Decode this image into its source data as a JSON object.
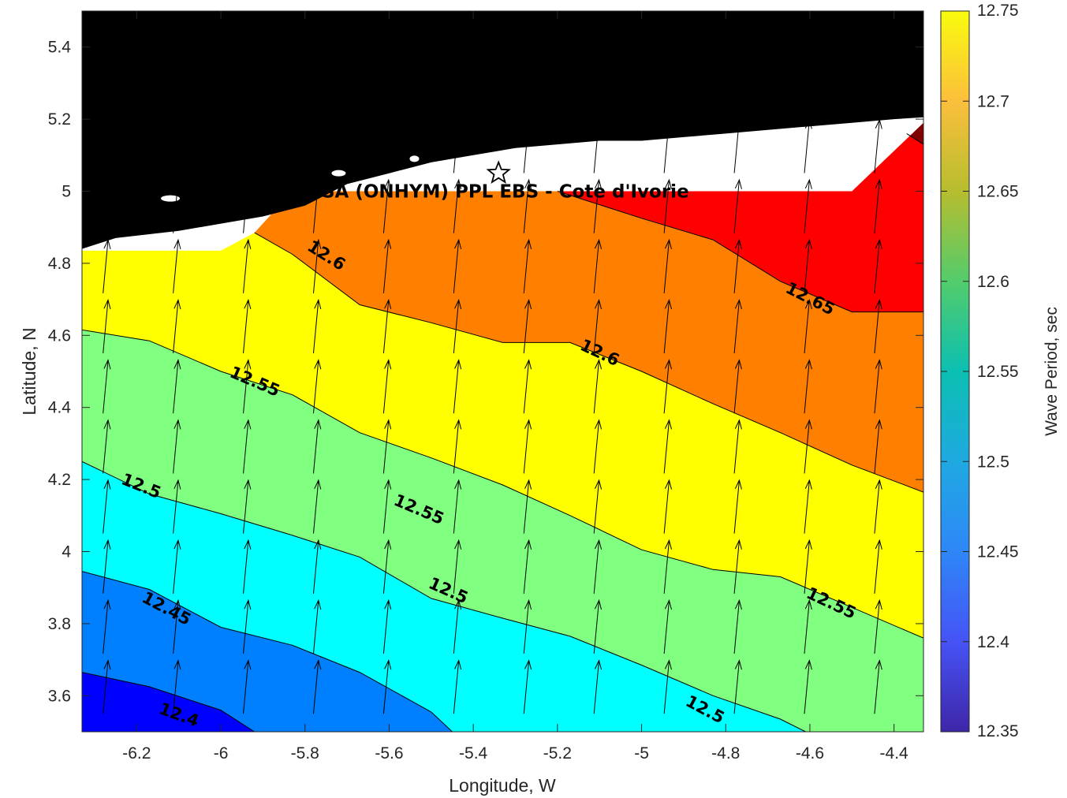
{
  "chart_data": {
    "type": "contour",
    "title": "",
    "xlabel": "Longitude, W",
    "ylabel": "Latitude, N",
    "colorbar_label": "Wave Period, sec",
    "xlim": [
      -6.33,
      -4.33
    ],
    "ylim": [
      3.5,
      5.5
    ],
    "clim": [
      12.35,
      12.75
    ],
    "x_ticks": [
      -6.2,
      -6,
      -5.8,
      -5.6,
      -5.4,
      -5.2,
      -5,
      -4.8,
      -4.6,
      -4.4
    ],
    "x_tick_labels": [
      "-6.2",
      "-6",
      "-5.8",
      "-5.6",
      "-5.4",
      "-5.2",
      "-5",
      "-4.8",
      "-4.6",
      "-4.4"
    ],
    "y_ticks": [
      3.6,
      3.8,
      4,
      4.2,
      4.4,
      4.6,
      4.8,
      5,
      5.2,
      5.4
    ],
    "y_tick_labels": [
      "3.6",
      "3.8",
      "4",
      "4.2",
      "4.4",
      "4.6",
      "4.8",
      "5",
      "5.2",
      "5.4"
    ],
    "colorbar_ticks": [
      12.35,
      12.4,
      12.45,
      12.5,
      12.55,
      12.6,
      12.65,
      12.7,
      12.75
    ],
    "colorbar_tick_labels": [
      "12.35",
      "12.4",
      "12.45",
      "12.5",
      "12.55",
      "12.6",
      "12.65",
      "12.7",
      "12.75"
    ],
    "contour_levels": [
      12.4,
      12.45,
      12.5,
      12.55,
      12.6,
      12.65,
      12.7
    ],
    "band_colors": [
      "#0000ff",
      "#0080ff",
      "#00ffff",
      "#80ff80",
      "#ffff00",
      "#ff8000",
      "#ff0000",
      "#800000"
    ],
    "contour_lines": [
      {
        "level": 12.4,
        "points": [
          [
            -6.33,
            3.665
          ],
          [
            -6.17,
            3.625
          ],
          [
            -6.0,
            3.56
          ],
          [
            -5.92,
            3.5
          ]
        ]
      },
      {
        "level": 12.45,
        "points": [
          [
            -6.33,
            3.945
          ],
          [
            -6.17,
            3.895
          ],
          [
            -6.0,
            3.79
          ],
          [
            -5.83,
            3.74
          ],
          [
            -5.67,
            3.665
          ],
          [
            -5.5,
            3.555
          ],
          [
            -5.45,
            3.5
          ]
        ]
      },
      {
        "level": 12.5,
        "points": [
          [
            -6.33,
            4.25
          ],
          [
            -6.17,
            4.16
          ],
          [
            -6.0,
            4.105
          ],
          [
            -5.83,
            4.045
          ],
          [
            -5.67,
            3.985
          ],
          [
            -5.5,
            3.87
          ],
          [
            -5.33,
            3.815
          ],
          [
            -5.17,
            3.765
          ],
          [
            -5.0,
            3.685
          ],
          [
            -4.83,
            3.6
          ],
          [
            -4.67,
            3.535
          ],
          [
            -4.61,
            3.5
          ]
        ]
      },
      {
        "level": 12.55,
        "points": [
          [
            -6.33,
            4.615
          ],
          [
            -6.17,
            4.585
          ],
          [
            -6.0,
            4.5
          ],
          [
            -5.83,
            4.435
          ],
          [
            -5.67,
            4.33
          ],
          [
            -5.5,
            4.26
          ],
          [
            -5.33,
            4.185
          ],
          [
            -5.17,
            4.1
          ],
          [
            -5.0,
            4.005
          ],
          [
            -4.83,
            3.95
          ],
          [
            -4.67,
            3.93
          ],
          [
            -4.5,
            3.845
          ],
          [
            -4.33,
            3.76
          ]
        ]
      },
      {
        "level": 12.6,
        "points": [
          [
            -5.92,
            4.885
          ],
          [
            -5.83,
            4.825
          ],
          [
            -5.67,
            4.685
          ],
          [
            -5.5,
            4.635
          ],
          [
            -5.33,
            4.58
          ],
          [
            -5.17,
            4.58
          ],
          [
            -5.0,
            4.5
          ],
          [
            -4.83,
            4.41
          ],
          [
            -4.67,
            4.33
          ],
          [
            -4.5,
            4.24
          ],
          [
            -4.33,
            4.165
          ]
        ]
      },
      {
        "level": 12.65,
        "points": [
          [
            -5.2,
            5.0
          ],
          [
            -5.0,
            4.925
          ],
          [
            -4.83,
            4.865
          ],
          [
            -4.67,
            4.75
          ],
          [
            -4.5,
            4.665
          ],
          [
            -4.33,
            4.665
          ]
        ]
      },
      {
        "level": 12.7,
        "points": [
          [
            -4.37,
            5.16
          ],
          [
            -4.33,
            5.13
          ]
        ]
      }
    ],
    "contour_labels": [
      {
        "text": "12.4",
        "x": -6.1,
        "y": 3.545,
        "angle": 20
      },
      {
        "text": "12.45",
        "x": -6.13,
        "y": 3.84,
        "angle": 28
      },
      {
        "text": "12.5",
        "x": -6.19,
        "y": 4.18,
        "angle": 22
      },
      {
        "text": "12.55",
        "x": -5.92,
        "y": 4.47,
        "angle": 23
      },
      {
        "text": "12.6",
        "x": -5.75,
        "y": 4.82,
        "angle": 32
      },
      {
        "text": "12.65",
        "x": -4.6,
        "y": 4.7,
        "angle": 27
      },
      {
        "text": "12.6",
        "x": -5.1,
        "y": 4.55,
        "angle": 25
      },
      {
        "text": "12.55",
        "x": -5.53,
        "y": 4.115,
        "angle": 23
      },
      {
        "text": "12.5",
        "x": -5.46,
        "y": 3.89,
        "angle": 24
      },
      {
        "text": "12.55",
        "x": -4.55,
        "y": 3.855,
        "angle": 25
      },
      {
        "text": "12.5",
        "x": -4.85,
        "y": 3.56,
        "angle": 28
      }
    ],
    "land_color": "#000000",
    "no_data_color": "#ffffff",
    "vector_field": {
      "description": "wave direction arrows pointing roughly NNE",
      "x_spacing": 0.1667,
      "y_spacing": 0.1667
    },
    "annotations": [
      {
        "text": "CSA (ONHYM) PPL EBS  - Cote d'Ivorie",
        "x": -5.34,
        "y": 5.0
      },
      {
        "marker": "star",
        "x": -5.34,
        "y": 5.05
      }
    ]
  }
}
